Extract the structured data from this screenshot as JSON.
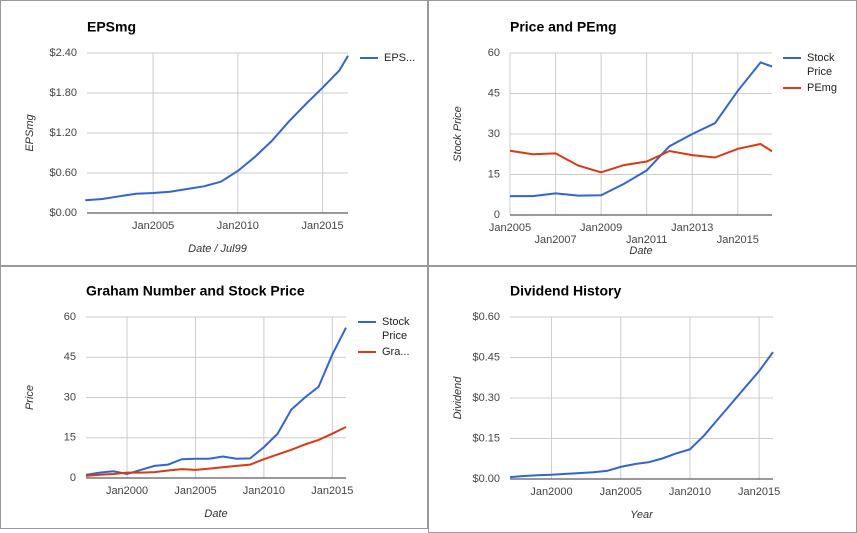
{
  "chart_data": [
    {
      "type": "line",
      "title": "EPSmg",
      "xlabel": "Date / Jul99",
      "ylabel": "EPSmg",
      "x": [
        2001,
        2002,
        2003,
        2004,
        2005,
        2006,
        2007,
        2008,
        2009,
        2010,
        2011,
        2012,
        2013,
        2014,
        2015,
        2016,
        2016.5
      ],
      "series": [
        {
          "name": "EPS...",
          "color": "#3366cc",
          "values": [
            0.19,
            0.21,
            0.25,
            0.29,
            0.3,
            0.32,
            0.36,
            0.4,
            0.47,
            0.63,
            0.84,
            1.08,
            1.37,
            1.63,
            1.88,
            2.14,
            2.36
          ]
        }
      ],
      "xlim": [
        2001.1,
        2016.5
      ],
      "ylim": [
        0,
        2.4
      ],
      "xticks": [
        {
          "value": 2005,
          "label": "Jan2005"
        },
        {
          "value": 2010,
          "label": "Jan2010"
        },
        {
          "value": 2015,
          "label": "Jan2015"
        }
      ],
      "yticks": [
        {
          "value": 0,
          "label": "$0.00"
        },
        {
          "value": 0.6,
          "label": "$0.60"
        },
        {
          "value": 1.2,
          "label": "$1.20"
        },
        {
          "value": 1.8,
          "label": "$1.80"
        },
        {
          "value": 2.4,
          "label": "$2.40"
        }
      ],
      "grid": true,
      "legend": "right"
    },
    {
      "type": "line",
      "title": "Price and PEmg",
      "xlabel": "Date",
      "ylabel": "Stock Price",
      "x": [
        2005,
        2006,
        2007,
        2008,
        2009,
        2010,
        2011,
        2012,
        2013,
        2014,
        2015,
        2016,
        2016.5
      ],
      "series": [
        {
          "name": "Stock Price",
          "color": "#3366cc",
          "values": [
            7,
            7,
            8,
            7.2,
            7.3,
            11.5,
            16.5,
            25.5,
            30,
            34,
            46,
            56.5,
            55
          ]
        },
        {
          "name": "PEmg",
          "color": "#dc3912",
          "values": [
            23.8,
            22.5,
            22.8,
            18.3,
            15.8,
            18.5,
            19.8,
            23.7,
            22.2,
            21.3,
            24.5,
            26.3,
            23.6
          ]
        }
      ],
      "xlim": [
        2005,
        2016.5
      ],
      "ylim": [
        0,
        60
      ],
      "xticks": [
        {
          "value": 2005,
          "label": "Jan2005"
        },
        {
          "value": 2007,
          "label": "Jan2007"
        },
        {
          "value": 2009,
          "label": "Jan2009"
        },
        {
          "value": 2011,
          "label": "Jan2011"
        },
        {
          "value": 2013,
          "label": "Jan2013"
        },
        {
          "value": 2015,
          "label": "Jan2015"
        }
      ],
      "yticks": [
        0,
        15,
        30,
        45,
        60
      ],
      "grid": true,
      "legend": "right"
    },
    {
      "type": "line",
      "title": "Graham Number and Stock Price",
      "xlabel": "Date",
      "ylabel": "Price",
      "x": [
        1997,
        1998,
        1999,
        2000,
        2001,
        2002,
        2003,
        2004,
        2005,
        2006,
        2007,
        2008,
        2009,
        2010,
        2011,
        2012,
        2013,
        2014,
        2015,
        2016
      ],
      "series": [
        {
          "name": "Stock Price",
          "color": "#3366cc",
          "values": [
            1.2,
            2,
            2.5,
            1.5,
            3,
            4.5,
            5,
            7,
            7.2,
            7.2,
            8,
            7.2,
            7.3,
            11.5,
            16.5,
            25.5,
            30,
            34,
            46,
            56
          ]
        },
        {
          "name": "Gra...",
          "color": "#dc3912",
          "values": [
            0.8,
            1.2,
            1.5,
            2,
            2,
            2.2,
            2.8,
            3.3,
            3,
            3.5,
            4,
            4.5,
            5,
            7,
            8.8,
            10.5,
            12.5,
            14.2,
            16.5,
            19
          ]
        }
      ],
      "xlim": [
        1997,
        2016
      ],
      "ylim": [
        0,
        60
      ],
      "xticks": [
        {
          "value": 2000,
          "label": "Jan2000"
        },
        {
          "value": 2005,
          "label": "Jan2005"
        },
        {
          "value": 2010,
          "label": "Jan2010"
        },
        {
          "value": 2015,
          "label": "Jan2015"
        }
      ],
      "yticks": [
        0,
        15,
        30,
        45,
        60
      ],
      "grid": true,
      "legend": "right"
    },
    {
      "type": "line",
      "title": "Dividend History",
      "xlabel": "Year",
      "ylabel": "Dividend",
      "x": [
        1997,
        1998,
        1999,
        2000,
        2001,
        2002,
        2003,
        2004,
        2005,
        2006,
        2007,
        2008,
        2009,
        2010,
        2011,
        2012,
        2013,
        2014,
        2015,
        2016
      ],
      "series": [
        {
          "color": "#3366cc",
          "values": [
            0.007,
            0.011,
            0.014,
            0.016,
            0.019,
            0.022,
            0.025,
            0.03,
            0.045,
            0.055,
            0.062,
            0.076,
            0.095,
            0.11,
            0.16,
            0.22,
            0.28,
            0.34,
            0.4,
            0.47
          ]
        }
      ],
      "xlim": [
        1997,
        2016
      ],
      "ylim": [
        0,
        0.6
      ],
      "xticks": [
        {
          "value": 2000,
          "label": "Jan2000"
        },
        {
          "value": 2005,
          "label": "Jan2005"
        },
        {
          "value": 2010,
          "label": "Jan2010"
        },
        {
          "value": 2015,
          "label": "Jan2015"
        }
      ],
      "yticks": [
        {
          "value": 0,
          "label": "$0.00"
        },
        {
          "value": 0.15,
          "label": "$0.15"
        },
        {
          "value": 0.3,
          "label": "$0.30"
        },
        {
          "value": 0.45,
          "label": "$0.45"
        },
        {
          "value": 0.6,
          "label": "$0.60"
        }
      ],
      "grid": true
    }
  ]
}
